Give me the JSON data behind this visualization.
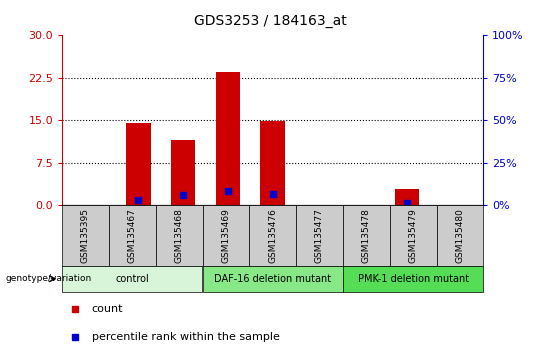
{
  "title": "GDS3253 / 184163_at",
  "samples": [
    "GSM135395",
    "GSM135467",
    "GSM135468",
    "GSM135469",
    "GSM135476",
    "GSM135477",
    "GSM135478",
    "GSM135479",
    "GSM135480"
  ],
  "count_values": [
    0,
    14.5,
    11.5,
    23.5,
    14.8,
    0,
    0,
    2.8,
    0
  ],
  "percentile_values": [
    0,
    3.0,
    6.0,
    8.5,
    6.5,
    0,
    0,
    1.5,
    0
  ],
  "ylim_left": [
    0,
    30
  ],
  "ylim_right": [
    0,
    100
  ],
  "yticks_left": [
    0,
    7.5,
    15,
    22.5,
    30
  ],
  "yticks_right": [
    0,
    25,
    50,
    75,
    100
  ],
  "groups": [
    {
      "label": "control",
      "start": 0,
      "end": 3,
      "color": "#d9f5d9"
    },
    {
      "label": "DAF-16 deletion mutant",
      "start": 3,
      "end": 6,
      "color": "#88e888"
    },
    {
      "label": "PMK-1 deletion mutant",
      "start": 6,
      "end": 9,
      "color": "#55dd55"
    }
  ],
  "bar_color": "#cc0000",
  "percentile_color": "#0000cc",
  "bar_width": 0.55,
  "left_axis_color": "#cc0000",
  "right_axis_color": "#0000cc",
  "sample_box_color": "#cccccc",
  "legend_count_label": "count",
  "legend_percentile_label": "percentile rank within the sample",
  "genotype_label": "genotype/variation"
}
